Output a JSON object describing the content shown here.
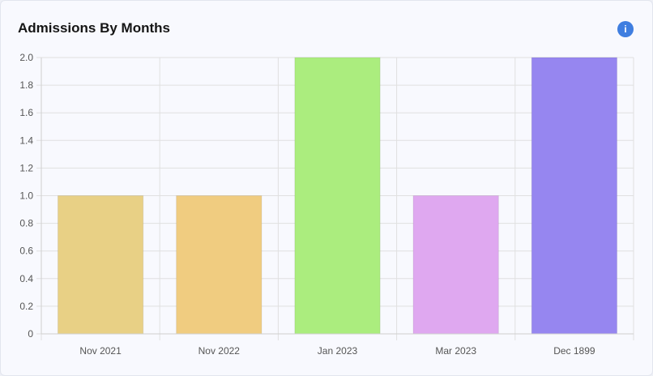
{
  "card": {
    "title": "Admissions By Months",
    "info_icon": "info-icon",
    "info_glyph": "i"
  },
  "chart_data": {
    "type": "bar",
    "categories": [
      "Nov 2021",
      "Nov 2022",
      "Jan 2023",
      "Mar 2023",
      "Dec 1899"
    ],
    "values": [
      1,
      1,
      2,
      1,
      2
    ],
    "colors": [
      "#e8d085",
      "#f0cc80",
      "#abed7e",
      "#dfa8f0",
      "#9686f0"
    ],
    "ylim": [
      0,
      2
    ],
    "yticks": [
      "0",
      "0.2",
      "0.4",
      "0.6",
      "0.8",
      "1.0",
      "1.2",
      "1.4",
      "1.6",
      "1.8",
      "2.0"
    ],
    "grid": true,
    "legend": "none",
    "xlabel": "",
    "ylabel": ""
  }
}
